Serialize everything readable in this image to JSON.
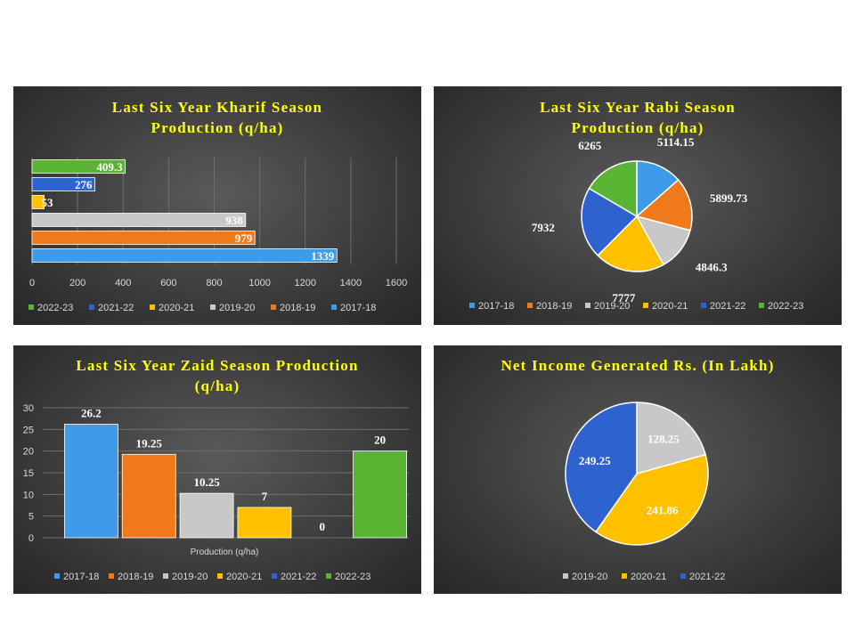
{
  "colors": {
    "2017-18": "#3d9be9",
    "2018-19": "#f07a1a",
    "2019-20": "#c8c8c8",
    "2020-21": "#ffc000",
    "2021-22": "#2e62cf",
    "2022-23": "#5ab433",
    "title": "#ffff00"
  },
  "chart_data": [
    {
      "type": "bar",
      "orientation": "horizontal",
      "title_lines": [
        "Last Six Year Kharif Season",
        "Production  (q/ha)"
      ],
      "categories": [
        "2022-23",
        "2021-22",
        "2020-21",
        "2019-20",
        "2018-19",
        "2017-18"
      ],
      "values": [
        409.3,
        276,
        53,
        938,
        979,
        1339
      ],
      "xlim": [
        0,
        1600
      ],
      "xticks": [
        "0",
        "200",
        "400",
        "600",
        "800",
        "1000",
        "1200",
        "1400",
        "1600"
      ],
      "grid": true,
      "legend_position": "bottom"
    },
    {
      "type": "pie",
      "title_lines": [
        "Last Six Year Rabi Season",
        "Production  (q/ha)"
      ],
      "labels": [
        "2017-18",
        "2018-19",
        "2019-20",
        "2020-21",
        "2021-22",
        "2022-23"
      ],
      "values": [
        5114.15,
        5899.73,
        4846.3,
        7777,
        7932,
        6265
      ],
      "value_labels": [
        "5114.15",
        "5899.73",
        "4846.3",
        "7777",
        "7932",
        "6265"
      ],
      "legend_position": "bottom"
    },
    {
      "type": "bar",
      "orientation": "vertical",
      "title_lines": [
        "Last Six Year Zaid Season Production",
        "(q/ha)"
      ],
      "series": [
        {
          "name": "2017-18",
          "value": 26.2,
          "label": "26.2"
        },
        {
          "name": "2018-19",
          "value": 19.25,
          "label": "19.25"
        },
        {
          "name": "2019-20",
          "value": 10.25,
          "label": "10.25"
        },
        {
          "name": "2020-21",
          "value": 7,
          "label": "7"
        },
        {
          "name": "2021-22",
          "value": 0,
          "label": "0"
        },
        {
          "name": "2022-23",
          "value": 20,
          "label": "20"
        }
      ],
      "xlabel": "Production (q/ha)",
      "ylim": [
        0,
        30
      ],
      "yticks": [
        "0",
        "5",
        "10",
        "15",
        "20",
        "25",
        "30"
      ],
      "grid": true,
      "legend_position": "bottom"
    },
    {
      "type": "pie",
      "title_lines": [
        "Net Income Generated Rs. (In Lakh)"
      ],
      "labels": [
        "2019-20",
        "2020-21",
        "2021-22"
      ],
      "values": [
        128.25,
        241.86,
        249.25
      ],
      "value_labels": [
        "128.25",
        "241.86",
        "249.25"
      ],
      "legend_position": "bottom"
    }
  ]
}
